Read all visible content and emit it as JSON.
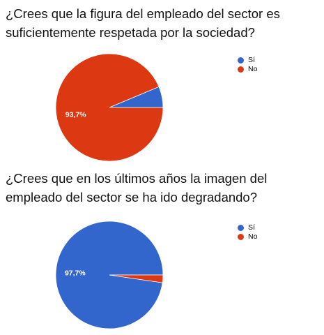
{
  "chart_data": [
    {
      "type": "pie",
      "title": "¿Crees que la figura del empleado del sector es suficientemente respetada por la sociedad?",
      "categories": [
        "Sí",
        "No"
      ],
      "values": [
        6.3,
        93.7
      ],
      "colors": [
        "#3366cc",
        "#dc3912"
      ],
      "data_labels": [
        "",
        "93,7%"
      ],
      "legend_position": "right"
    },
    {
      "type": "pie",
      "title": "¿Crees que en los últimos años la imagen del empleado del sector se ha ido degradando?",
      "categories": [
        "Sí",
        "No"
      ],
      "values": [
        97.7,
        2.3
      ],
      "colors": [
        "#3366cc",
        "#dc3912"
      ],
      "data_labels": [
        "97,7%",
        ""
      ],
      "legend_position": "right"
    }
  ]
}
